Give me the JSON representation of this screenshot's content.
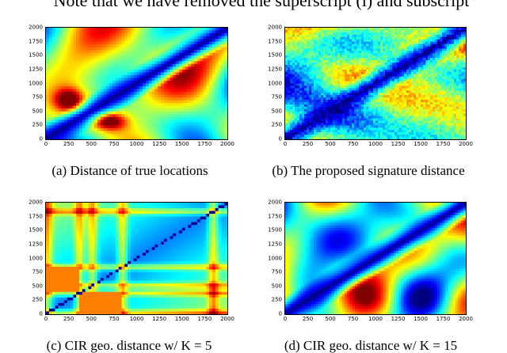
{
  "top_text": "Note that we have removed the superscript (i) and subscript",
  "captions": {
    "a": "(a) Distance of true locations",
    "b": "(b) The proposed signature distance",
    "c": "(c) CIR geo. distance w/ K = 5",
    "d": "(d) CIR geo. distance w/ K = 15"
  },
  "axis_ticks": {
    "x": [
      "0",
      "250",
      "500",
      "750",
      "1000",
      "1250",
      "1500",
      "1750",
      "2000"
    ],
    "y": [
      "2000",
      "1750",
      "1500",
      "1250",
      "1000",
      "750",
      "500",
      "250",
      "0"
    ]
  },
  "colormap": "jet",
  "chart_data": [
    {
      "type": "heatmap",
      "title": "",
      "xlim": [
        0,
        2000
      ],
      "ylim": [
        0,
        2000
      ],
      "grid": false
    },
    {
      "type": "heatmap",
      "title": "",
      "xlim": [
        0,
        2000
      ],
      "ylim": [
        0,
        2000
      ],
      "grid": false
    },
    {
      "type": "heatmap",
      "title": "",
      "xlim": [
        0,
        2000
      ],
      "ylim": [
        0,
        2000
      ],
      "grid": false
    },
    {
      "type": "heatmap",
      "title": "",
      "xlim": [
        0,
        2000
      ],
      "ylim": [
        0,
        2000
      ],
      "grid": false
    }
  ]
}
